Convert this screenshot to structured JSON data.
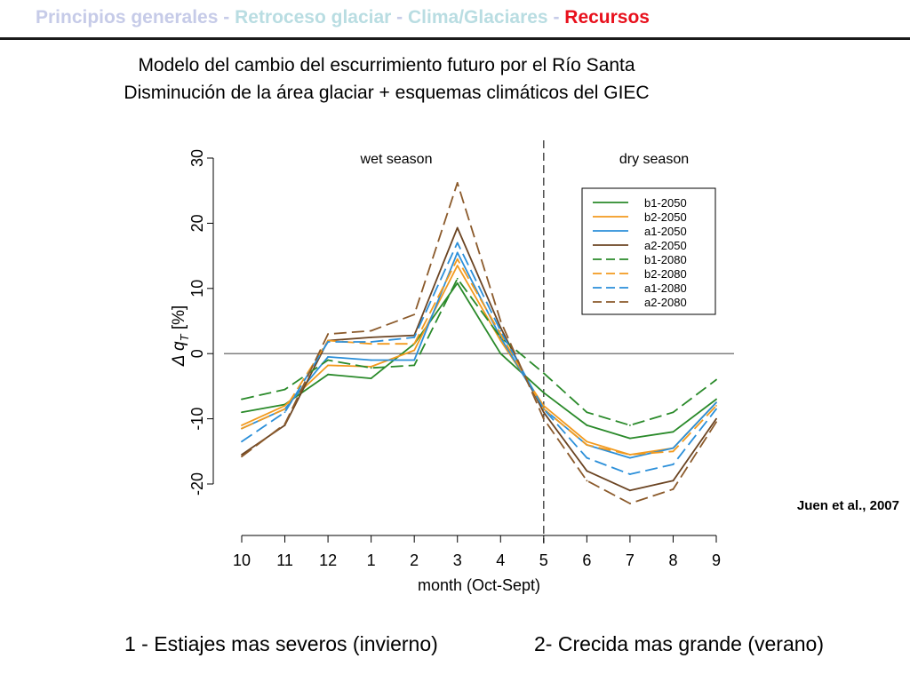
{
  "breadcrumb": {
    "items": [
      {
        "label": "Principios generales",
        "color": "#c6cbe8"
      },
      {
        "label": "Retroceso glaciar",
        "color": "#b9dde2"
      },
      {
        "label": "Clima/Glaciares",
        "color": "#b9dde2"
      },
      {
        "label": "Recursos",
        "color": "#e8101c"
      }
    ],
    "separator": " - "
  },
  "slide": {
    "subtitle_line1": "Modelo del cambio del escurrimiento futuro por el Río Santa",
    "subtitle_line2": "Disminución de la área glaciar + esquemas climáticos del GIEC",
    "citation": "Juen et al., 2007",
    "note_left": "1 - Estiajes mas severos (invierno)",
    "note_right": "2- Crecida mas grande (verano)"
  },
  "chart_data": {
    "type": "line",
    "xlabel": "month (Oct-Sept)",
    "ylabel": "Δ q_T [%]",
    "ylabel_main": "Δ q",
    "ylabel_sub": "T",
    "ylabel_unit": "[%]",
    "x": [
      "10",
      "11",
      "12",
      "1",
      "2",
      "3",
      "4",
      "5",
      "6",
      "7",
      "8",
      "9"
    ],
    "ylim": [
      -23,
      31
    ],
    "yticks": [
      -20,
      -10,
      0,
      10,
      20,
      30
    ],
    "reference_line_y": 0,
    "season_divider_x": "5",
    "season_labels": [
      "wet season",
      "dry season"
    ],
    "legend_position": "top-right",
    "series": [
      {
        "name": "b1-2050",
        "color": "#2a8a2a",
        "dashed": false,
        "values": [
          -9,
          -7.8,
          -3.2,
          -3.8,
          1.5,
          10.8,
          0,
          -6,
          -11,
          -13,
          -12,
          -7
        ]
      },
      {
        "name": "b2-2050",
        "color": "#f29a1e",
        "dashed": false,
        "values": [
          -11,
          -8,
          -1.8,
          -2,
          0.5,
          13.5,
          2,
          -8,
          -13.5,
          -15.5,
          -14.5,
          -7.5
        ]
      },
      {
        "name": "a1-2050",
        "color": "#2b8fd9",
        "dashed": false,
        "values": [
          -11.5,
          -8.5,
          -0.5,
          -1,
          -1,
          15.5,
          2.5,
          -8.5,
          -14,
          -16,
          -14.5,
          -7.5
        ]
      },
      {
        "name": "a2-2050",
        "color": "#6b4422",
        "dashed": false,
        "values": [
          -15.5,
          -11,
          2,
          2.5,
          2.8,
          19.3,
          4,
          -9,
          -18,
          -21,
          -19.5,
          -10
        ]
      },
      {
        "name": "b1-2080",
        "color": "#2a8a2a",
        "dashed": true,
        "values": [
          -7,
          -5.5,
          -1,
          -2.2,
          -1.8,
          11.5,
          2.5,
          -3,
          -9,
          -11,
          -9,
          -4
        ]
      },
      {
        "name": "b2-2080",
        "color": "#f29a1e",
        "dashed": true,
        "values": [
          -11.5,
          -8.5,
          2,
          1.5,
          1.5,
          14.5,
          3,
          -8.5,
          -14,
          -15.5,
          -15,
          -8
        ]
      },
      {
        "name": "a1-2080",
        "color": "#2b8fd9",
        "dashed": true,
        "values": [
          -13.5,
          -9,
          1.8,
          1.8,
          2.5,
          17,
          3.5,
          -8.5,
          -16,
          -18.5,
          -17,
          -8.5
        ]
      },
      {
        "name": "a2-2080",
        "color": "#8b5a2b",
        "dashed": true,
        "values": [
          -15.8,
          -10.8,
          3,
          3.5,
          6,
          26.2,
          5,
          -10,
          -19.5,
          -23,
          -20.8,
          -10.5
        ]
      }
    ]
  }
}
